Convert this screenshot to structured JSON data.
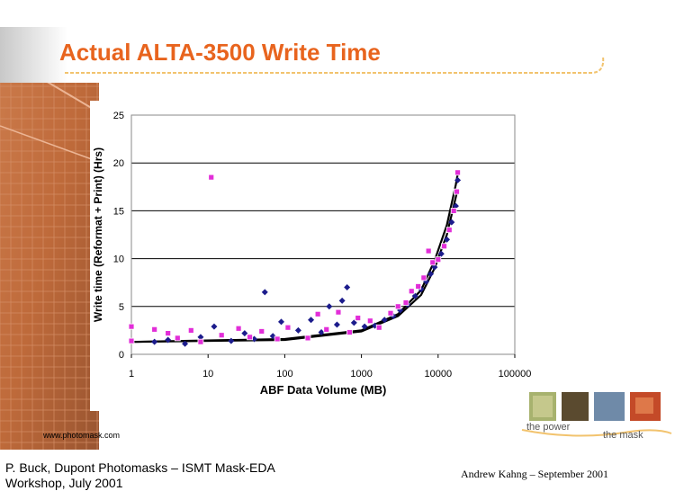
{
  "slide": {
    "title": "Actual ALTA-3500 Write Time",
    "website": "www.photomask.com",
    "footer_left_line1": "P. Buck, Dupont Photomasks – ISMT Mask-EDA",
    "footer_left_line2": "Workshop, July 2001",
    "footer_right": "Andrew Kahng – September 2001",
    "logo_text_1": "the power",
    "logo_text_2": "the mask",
    "colors": {
      "title": "#e8641e",
      "series_a": "#1c1c8c",
      "series_b": "#e22ed8",
      "trend": "#000000",
      "gridline": "#000000",
      "logo_underline": "#f2c36e"
    }
  },
  "chart_data": {
    "type": "scatter",
    "title": "",
    "xlabel": "ABF Data Volume (MB)",
    "ylabel": "Write time (Reformat + Print) (Hrs)",
    "xscale": "log",
    "xlim": [
      1,
      100000
    ],
    "ylim": [
      0,
      25
    ],
    "xticks": [
      "1",
      "10",
      "100",
      "1000",
      "10000",
      "100000"
    ],
    "yticks": [
      "0",
      "5",
      "10",
      "15",
      "20",
      "25"
    ],
    "grid": "horizontal",
    "series": [
      {
        "marker": "diamond",
        "color": "#1c1c8c",
        "points": [
          [
            2,
            1.3
          ],
          [
            3,
            1.5
          ],
          [
            5,
            1.1
          ],
          [
            8,
            1.8
          ],
          [
            12,
            2.9
          ],
          [
            20,
            1.4
          ],
          [
            30,
            2.2
          ],
          [
            55,
            6.5
          ],
          [
            40,
            1.6
          ],
          [
            70,
            1.9
          ],
          [
            90,
            3.4
          ],
          [
            150,
            2.5
          ],
          [
            220,
            3.6
          ],
          [
            300,
            2.3
          ],
          [
            380,
            5.0
          ],
          [
            480,
            3.1
          ],
          [
            560,
            5.6
          ],
          [
            650,
            7.0
          ],
          [
            800,
            3.3
          ],
          [
            1100,
            2.9
          ],
          [
            1500,
            3.0
          ],
          [
            2000,
            3.6
          ],
          [
            2600,
            4.0
          ],
          [
            3200,
            4.6
          ],
          [
            4000,
            5.2
          ],
          [
            5000,
            6.1
          ],
          [
            6000,
            6.8
          ],
          [
            7000,
            7.6
          ],
          [
            8000,
            8.4
          ],
          [
            9000,
            9.1
          ],
          [
            11000,
            10.5
          ],
          [
            13000,
            12.0
          ],
          [
            15000,
            13.8
          ],
          [
            17000,
            15.5
          ],
          [
            18000,
            18.2
          ]
        ]
      },
      {
        "marker": "square",
        "color": "#e22ed8",
        "points": [
          [
            1,
            2.9
          ],
          [
            1,
            1.4
          ],
          [
            2,
            2.6
          ],
          [
            3,
            2.2
          ],
          [
            4,
            1.7
          ],
          [
            6,
            2.5
          ],
          [
            8,
            1.3
          ],
          [
            11,
            18.5
          ],
          [
            15,
            2.0
          ],
          [
            25,
            2.7
          ],
          [
            35,
            1.8
          ],
          [
            50,
            2.4
          ],
          [
            80,
            1.6
          ],
          [
            110,
            2.8
          ],
          [
            200,
            1.7
          ],
          [
            270,
            4.2
          ],
          [
            350,
            2.6
          ],
          [
            500,
            4.4
          ],
          [
            700,
            2.3
          ],
          [
            900,
            3.8
          ],
          [
            1300,
            3.5
          ],
          [
            1700,
            2.8
          ],
          [
            2400,
            4.3
          ],
          [
            3000,
            5.0
          ],
          [
            3800,
            5.4
          ],
          [
            4500,
            6.6
          ],
          [
            5500,
            7.1
          ],
          [
            6500,
            8.0
          ],
          [
            7500,
            10.8
          ],
          [
            8500,
            9.6
          ],
          [
            10000,
            9.9
          ],
          [
            12000,
            11.3
          ],
          [
            14000,
            13.0
          ],
          [
            16000,
            15.0
          ],
          [
            18000,
            19.0
          ],
          [
            17500,
            17.0
          ]
        ]
      }
    ],
    "trend_lines": [
      {
        "color": "#000000",
        "points": [
          [
            1,
            1.3
          ],
          [
            100,
            1.6
          ],
          [
            1000,
            2.5
          ],
          [
            3000,
            4.2
          ],
          [
            6000,
            6.7
          ],
          [
            9000,
            9.8
          ],
          [
            13000,
            13.5
          ],
          [
            17000,
            17.7
          ],
          [
            18000,
            18.8
          ]
        ]
      },
      {
        "color": "#000000",
        "points": [
          [
            1,
            1.3
          ],
          [
            100,
            1.5
          ],
          [
            1000,
            2.4
          ],
          [
            3000,
            4.0
          ],
          [
            6000,
            6.2
          ],
          [
            9000,
            9.0
          ],
          [
            13000,
            12.5
          ],
          [
            17000,
            16.4
          ],
          [
            18000,
            17.2
          ]
        ]
      }
    ]
  }
}
